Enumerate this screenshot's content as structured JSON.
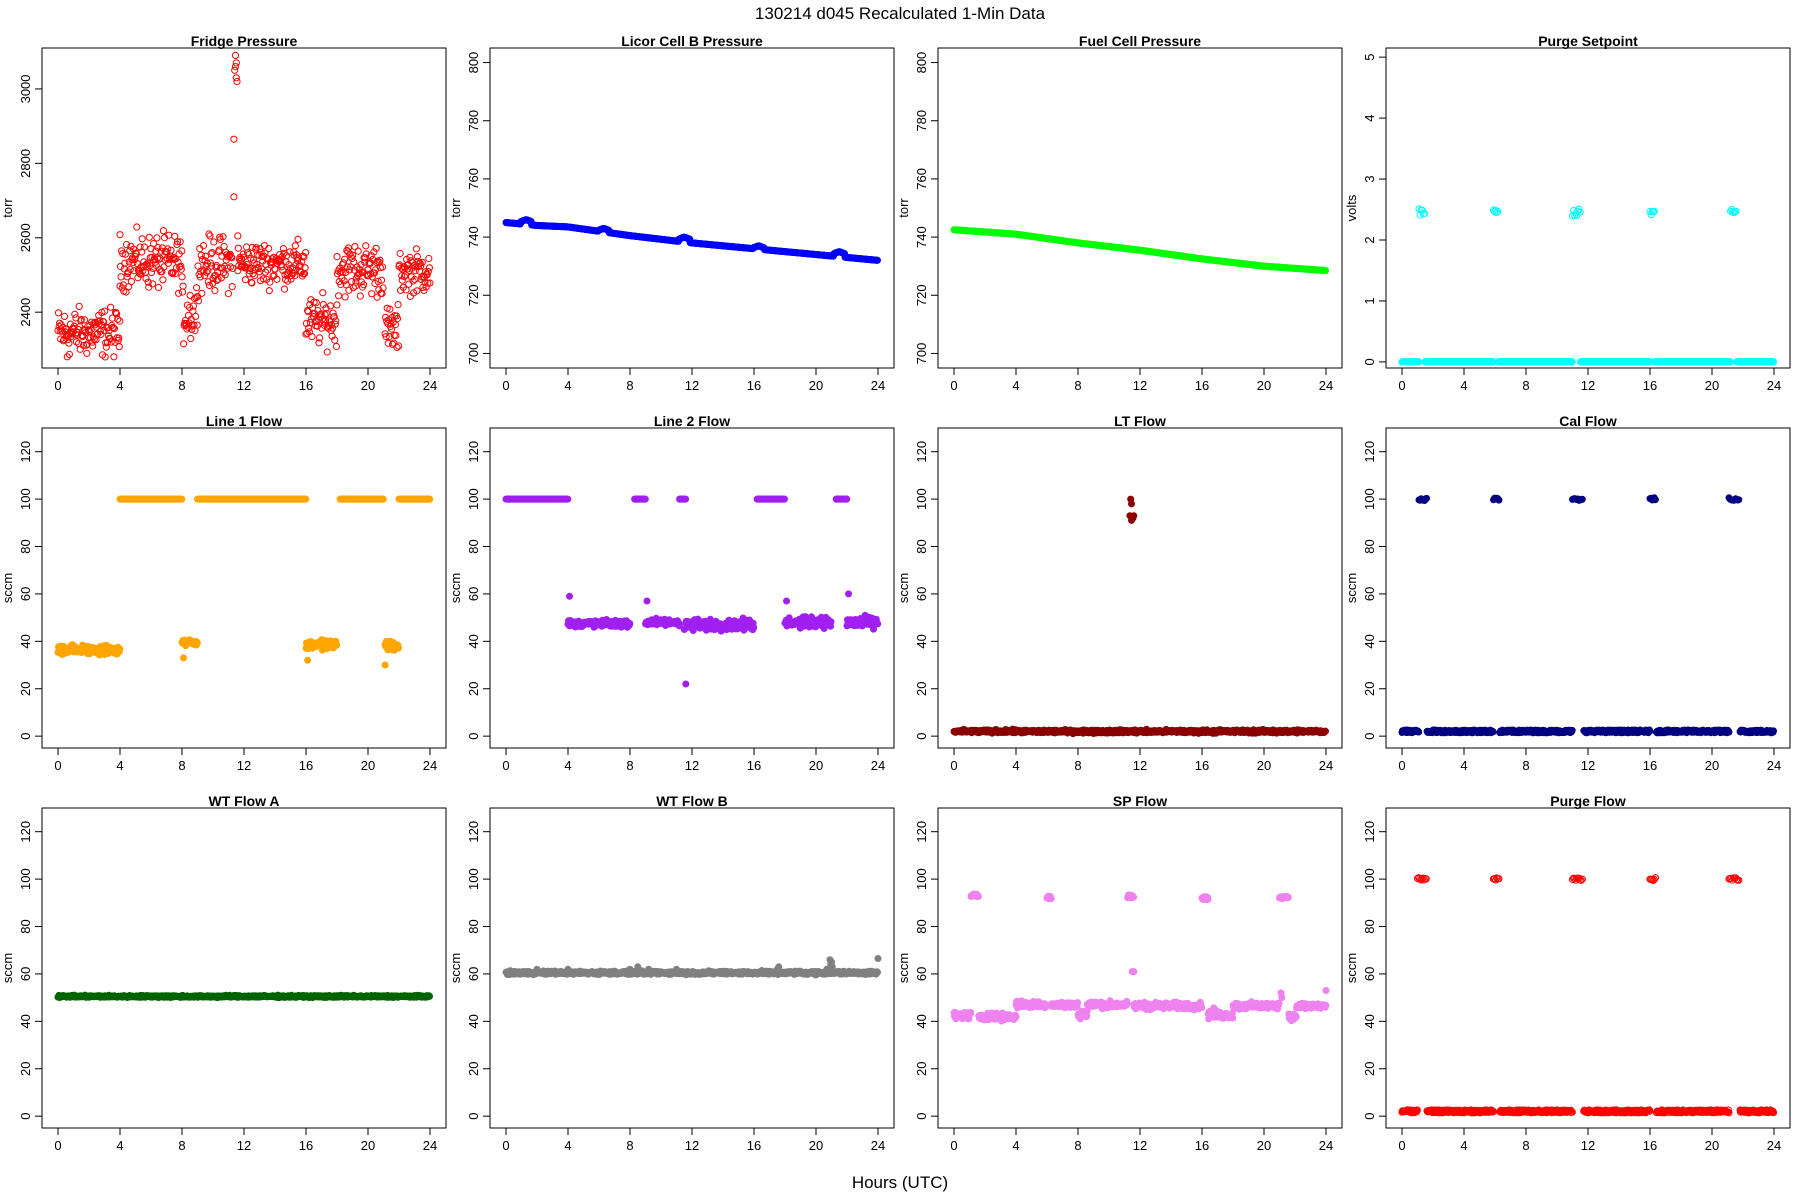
{
  "figure": {
    "title": "130214   d045   Recalculated 1-Min Data",
    "xlabel": "Hours (UTC)"
  },
  "chart_data": [
    {
      "type": "scatter",
      "title": "Fridge Pressure",
      "ylabel": "torr",
      "color": "#ff0000",
      "filled": false,
      "xlim": [
        0,
        24
      ],
      "ylim": [
        2250,
        3110
      ],
      "xticks": [
        0,
        4,
        8,
        12,
        16,
        20,
        24
      ],
      "yticks": [
        2400,
        2600,
        2800,
        3000
      ],
      "segments": [
        [
          0,
          4,
          2345,
          45
        ],
        [
          4,
          8,
          2535,
          50
        ],
        [
          8,
          9,
          2400,
          60
        ],
        [
          9,
          11.3,
          2530,
          50
        ],
        [
          11.6,
          16,
          2530,
          40
        ],
        [
          16,
          18,
          2375,
          45
        ],
        [
          18,
          21,
          2515,
          50
        ],
        [
          21.1,
          22,
          2350,
          45
        ],
        [
          22,
          24,
          2510,
          40
        ]
      ],
      "outliers": [
        [
          11.45,
          3090
        ],
        [
          11.5,
          3070
        ],
        [
          11.4,
          3050
        ],
        [
          11.5,
          3030
        ],
        [
          11.55,
          3020
        ],
        [
          11.45,
          3060
        ],
        [
          11.35,
          2865
        ],
        [
          11.35,
          2710
        ],
        [
          11.6,
          2605
        ],
        [
          4.0,
          2470
        ],
        [
          0.6,
          2280
        ]
      ],
      "mode": "noisy"
    },
    {
      "type": "scatter",
      "title": "Licor Cell B Pressure",
      "ylabel": "torr",
      "color": "#0000ff",
      "filled": true,
      "xlim": [
        0,
        24
      ],
      "ylim": [
        695,
        805
      ],
      "xticks": [
        0,
        4,
        8,
        12,
        16,
        20,
        24
      ],
      "yticks": [
        700,
        720,
        740,
        760,
        780,
        800
      ],
      "line": [
        [
          0,
          745
        ],
        [
          2,
          744
        ],
        [
          4,
          743.5
        ],
        [
          8,
          740.5
        ],
        [
          12,
          738
        ],
        [
          16,
          736
        ],
        [
          20,
          734
        ],
        [
          24,
          732
        ]
      ],
      "bumps": [
        [
          1.3,
          746
        ],
        [
          6.3,
          743
        ],
        [
          11.5,
          740
        ],
        [
          16.3,
          737
        ],
        [
          21.5,
          735
        ]
      ],
      "mode": "line"
    },
    {
      "type": "scatter",
      "title": "Fuel Cell Pressure",
      "ylabel": "torr",
      "color": "#00ff00",
      "filled": true,
      "xlim": [
        0,
        24
      ],
      "ylim": [
        695,
        805
      ],
      "xticks": [
        0,
        4,
        8,
        12,
        16,
        20,
        24
      ],
      "yticks": [
        700,
        720,
        740,
        760,
        780,
        800
      ],
      "line": [
        [
          0,
          742.5
        ],
        [
          4,
          741
        ],
        [
          8,
          738
        ],
        [
          12,
          735.5
        ],
        [
          16,
          732.5
        ],
        [
          20,
          730
        ],
        [
          24,
          728.5
        ]
      ],
      "bumps": [],
      "mode": "line"
    },
    {
      "type": "scatter",
      "title": "Purge Setpoint",
      "ylabel": "volts",
      "color": "#00ffff",
      "filled": false,
      "xlim": [
        0,
        24
      ],
      "ylim": [
        -0.1,
        5.15
      ],
      "xticks": [
        0,
        4,
        8,
        12,
        16,
        20,
        24
      ],
      "yticks": [
        0,
        1,
        2,
        3,
        4,
        5
      ],
      "base": 0,
      "pulses": [
        [
          1.1,
          1.5,
          2.45
        ],
        [
          5.9,
          6.2,
          2.45
        ],
        [
          11.0,
          11.5,
          2.45
        ],
        [
          16.0,
          16.3,
          2.45
        ],
        [
          21.2,
          21.6,
          2.45
        ]
      ],
      "mode": "pulse"
    },
    {
      "type": "scatter",
      "title": "Line 1 Flow",
      "ylabel": "sccm",
      "color": "#ffa500",
      "filled": true,
      "xlim": [
        0,
        24
      ],
      "ylim": [
        -5,
        130
      ],
      "xticks": [
        0,
        4,
        8,
        12,
        16,
        20,
        24
      ],
      "yticks": [
        0,
        20,
        40,
        60,
        80,
        100,
        120
      ],
      "segments": [
        [
          0,
          4,
          36.5,
          1.5
        ],
        [
          4,
          8,
          100,
          0
        ],
        [
          8,
          9,
          39.5,
          1
        ],
        [
          9,
          16,
          100,
          0
        ],
        [
          16,
          18,
          38.5,
          1.5
        ],
        [
          18.2,
          21,
          100,
          0
        ],
        [
          21.1,
          22,
          38,
          1.5
        ],
        [
          22,
          24,
          100,
          0
        ]
      ],
      "outliers": [
        [
          8.1,
          33
        ],
        [
          16.1,
          32
        ],
        [
          21.1,
          30
        ]
      ],
      "mode": "segments"
    },
    {
      "type": "scatter",
      "title": "Line 2 Flow",
      "ylabel": "sccm",
      "color": "#a020f0",
      "filled": true,
      "xlim": [
        0,
        24
      ],
      "ylim": [
        -5,
        130
      ],
      "xticks": [
        0,
        4,
        8,
        12,
        16,
        20,
        24
      ],
      "yticks": [
        0,
        20,
        40,
        60,
        80,
        100,
        120
      ],
      "segments": [
        [
          0,
          4,
          100,
          0
        ],
        [
          4,
          8,
          47.5,
          1
        ],
        [
          8.3,
          9,
          100,
          0
        ],
        [
          9,
          11.2,
          48,
          1
        ],
        [
          11.2,
          11.6,
          100,
          0
        ],
        [
          11.6,
          16,
          47,
          1.5
        ],
        [
          16.2,
          18,
          100,
          0
        ],
        [
          18,
          21,
          48,
          1.5
        ],
        [
          21.3,
          22,
          100,
          0
        ],
        [
          22,
          24,
          48,
          1.5
        ]
      ],
      "outliers": [
        [
          4.1,
          59
        ],
        [
          9.1,
          57
        ],
        [
          18.1,
          57
        ],
        [
          22.1,
          60
        ],
        [
          11.6,
          22
        ],
        [
          11.5,
          45
        ]
      ],
      "mode": "segments"
    },
    {
      "type": "scatter",
      "title": "LT Flow",
      "ylabel": "sccm",
      "color": "#8b0000",
      "filled": true,
      "xlim": [
        0,
        24
      ],
      "ylim": [
        -5,
        130
      ],
      "xticks": [
        0,
        4,
        8,
        12,
        16,
        20,
        24
      ],
      "yticks": [
        0,
        20,
        40,
        60,
        80,
        100,
        120
      ],
      "segments": [
        [
          0,
          24,
          2,
          0.5
        ]
      ],
      "outliers": [
        [
          11.4,
          100
        ],
        [
          11.45,
          98
        ],
        [
          11.35,
          93
        ],
        [
          11.5,
          92
        ],
        [
          11.55,
          92
        ],
        [
          11.6,
          93
        ],
        [
          11.45,
          91
        ]
      ],
      "mode": "segments"
    },
    {
      "type": "scatter",
      "title": "Cal Flow",
      "ylabel": "sccm",
      "color": "#000080",
      "filled": true,
      "xlim": [
        0,
        24
      ],
      "ylim": [
        -5,
        130
      ],
      "xticks": [
        0,
        4,
        8,
        12,
        16,
        20,
        24
      ],
      "yticks": [
        0,
        20,
        40,
        60,
        80,
        100,
        120
      ],
      "base": 2,
      "pulses": [
        [
          1.1,
          1.6,
          100
        ],
        [
          5.9,
          6.3,
          100
        ],
        [
          11.0,
          11.7,
          100
        ],
        [
          16.0,
          16.4,
          100
        ],
        [
          21.1,
          21.8,
          100
        ]
      ],
      "mode": "pulse"
    },
    {
      "type": "scatter",
      "title": "WT Flow A",
      "ylabel": "sccm",
      "color": "#006400",
      "filled": true,
      "xlim": [
        0,
        24
      ],
      "ylim": [
        -5,
        130
      ],
      "xticks": [
        0,
        4,
        8,
        12,
        16,
        20,
        24
      ],
      "yticks": [
        0,
        20,
        40,
        60,
        80,
        100,
        120
      ],
      "segments": [
        [
          0,
          24,
          50.5,
          0.3
        ]
      ],
      "outliers": [],
      "mode": "segments"
    },
    {
      "type": "scatter",
      "title": "WT Flow B",
      "ylabel": "sccm",
      "color": "#808080",
      "filled": true,
      "xlim": [
        0,
        24
      ],
      "ylim": [
        -5,
        130
      ],
      "xticks": [
        0,
        4,
        8,
        12,
        16,
        20,
        24
      ],
      "yticks": [
        0,
        20,
        40,
        60,
        80,
        100,
        120
      ],
      "segments": [
        [
          0,
          24,
          60.5,
          0.5
        ]
      ],
      "outliers": [
        [
          2,
          62
        ],
        [
          4,
          62
        ],
        [
          8,
          62
        ],
        [
          8.5,
          63
        ],
        [
          9.2,
          62
        ],
        [
          11,
          62
        ],
        [
          14.5,
          61
        ],
        [
          17.5,
          62
        ],
        [
          17.6,
          63
        ],
        [
          20.7,
          62
        ],
        [
          20.9,
          66
        ],
        [
          21,
          65
        ],
        [
          20.95,
          64
        ],
        [
          21.05,
          63
        ],
        [
          24,
          66.5
        ]
      ],
      "mode": "segments"
    },
    {
      "type": "scatter",
      "title": "SP Flow",
      "ylabel": "sccm",
      "color": "#ee82ee",
      "filled": true,
      "xlim": [
        0,
        24
      ],
      "ylim": [
        -5,
        130
      ],
      "xticks": [
        0,
        4,
        8,
        12,
        16,
        20,
        24
      ],
      "yticks": [
        0,
        20,
        40,
        60,
        80,
        100,
        120
      ],
      "segments": [
        [
          0,
          1.1,
          42.5,
          1
        ],
        [
          1.1,
          1.6,
          93,
          0.5
        ],
        [
          1.6,
          4,
          42,
          1
        ],
        [
          4,
          6,
          47,
          1
        ],
        [
          6,
          6.3,
          92.5,
          0.5
        ],
        [
          6.3,
          8,
          47,
          1
        ],
        [
          8,
          8.6,
          43,
          1.5
        ],
        [
          8.6,
          11.2,
          47,
          1
        ],
        [
          11.2,
          11.6,
          92.5,
          0.5
        ],
        [
          11.6,
          16,
          46.5,
          1
        ],
        [
          16,
          16.4,
          92,
          0.5
        ],
        [
          16.4,
          17,
          43,
          1.5
        ],
        [
          17,
          18,
          42.5,
          1
        ],
        [
          18,
          21,
          46.5,
          1
        ],
        [
          21,
          21.6,
          92.5,
          0.5
        ],
        [
          21.6,
          22.1,
          42,
          1
        ],
        [
          22.1,
          24,
          46.5,
          1
        ]
      ],
      "outliers": [
        [
          11.5,
          61
        ],
        [
          11.6,
          61
        ],
        [
          8.1,
          42
        ],
        [
          21.1,
          52
        ],
        [
          21.15,
          50
        ],
        [
          24,
          53
        ],
        [
          9.2,
          48
        ],
        [
          13,
          48
        ]
      ],
      "mode": "segments"
    },
    {
      "type": "scatter",
      "title": "Purge Flow",
      "ylabel": "sccm",
      "color": "#ff0000",
      "filled": false,
      "xlim": [
        0,
        24
      ],
      "ylim": [
        -5,
        130
      ],
      "xticks": [
        0,
        4,
        8,
        12,
        16,
        20,
        24
      ],
      "yticks": [
        0,
        20,
        40,
        60,
        80,
        100,
        120
      ],
      "base": 2,
      "pulses": [
        [
          1.0,
          1.6,
          100
        ],
        [
          5.9,
          6.3,
          100
        ],
        [
          11.0,
          11.7,
          100
        ],
        [
          16.0,
          16.4,
          100
        ],
        [
          21.1,
          21.8,
          100
        ]
      ],
      "mode": "pulse"
    }
  ]
}
